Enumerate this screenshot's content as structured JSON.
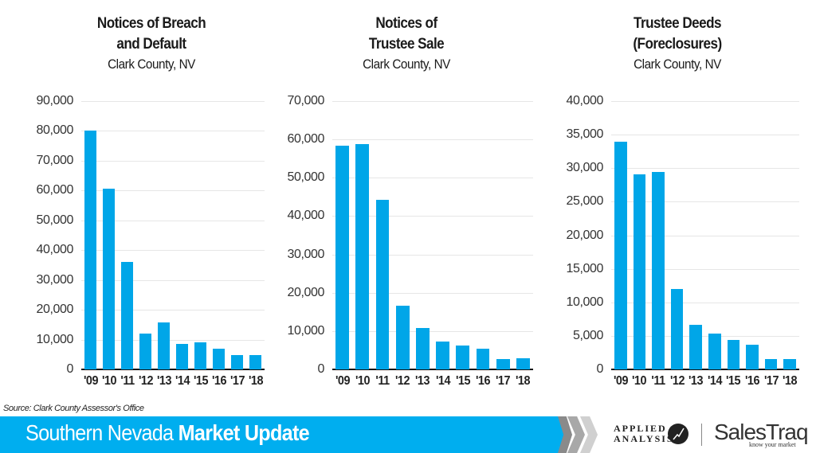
{
  "charts": [
    {
      "title_line1": "Notices of Breach",
      "title_line2": "and Default",
      "subtitle": "Clark County, NV",
      "yticks": [
        "0",
        "10,000",
        "20,000",
        "30,000",
        "40,000",
        "50,000",
        "60,000",
        "70,000",
        "80,000",
        "90,000"
      ],
      "ymax": 90000
    },
    {
      "title_line1": "Notices of",
      "title_line2": "Trustee Sale",
      "subtitle": "Clark County, NV",
      "yticks": [
        "0",
        "10,000",
        "20,000",
        "30,000",
        "40,000",
        "50,000",
        "60,000",
        "70,000"
      ],
      "ymax": 70000
    },
    {
      "title_line1": "Trustee Deeds",
      "title_line2": "(Foreclosures)",
      "subtitle": "Clark County, NV",
      "yticks": [
        "0",
        "5,000",
        "10,000",
        "15,000",
        "20,000",
        "25,000",
        "30,000",
        "35,000",
        "40,000"
      ],
      "ymax": 40000
    }
  ],
  "chart_data": [
    {
      "type": "bar",
      "title": "Notices of Breach and Default",
      "subtitle": "Clark County, NV",
      "categories": [
        "'09",
        "'10",
        "'11",
        "'12",
        "'13",
        "'14",
        "'15",
        "'16",
        "'17",
        "'18"
      ],
      "values": [
        80000,
        60700,
        36100,
        12000,
        15800,
        8600,
        9100,
        6900,
        4800,
        4800
      ],
      "xlabel": "",
      "ylabel": "",
      "ylim": [
        0,
        90000
      ],
      "yticks": [
        0,
        10000,
        20000,
        30000,
        40000,
        50000,
        60000,
        70000,
        80000,
        90000
      ],
      "grid": true,
      "color": "#00a6e8"
    },
    {
      "type": "bar",
      "title": "Notices of Trustee Sale",
      "subtitle": "Clark County, NV",
      "categories": [
        "'09",
        "'10",
        "'11",
        "'12",
        "'13",
        "'14",
        "'15",
        "'16",
        "'17",
        "'18"
      ],
      "values": [
        58400,
        58800,
        44300,
        16600,
        10800,
        7300,
        6200,
        5400,
        2700,
        2900
      ],
      "xlabel": "",
      "ylabel": "",
      "ylim": [
        0,
        70000
      ],
      "yticks": [
        0,
        10000,
        20000,
        30000,
        40000,
        50000,
        60000,
        70000
      ],
      "grid": true,
      "color": "#00a6e8"
    },
    {
      "type": "bar",
      "title": "Trustee Deeds (Foreclosures)",
      "subtitle": "Clark County, NV",
      "categories": [
        "'09",
        "'10",
        "'11",
        "'12",
        "'13",
        "'14",
        "'15",
        "'16",
        "'17",
        "'18"
      ],
      "values": [
        34000,
        29100,
        29400,
        12000,
        6700,
        5300,
        4400,
        3700,
        1600,
        1600
      ],
      "xlabel": "",
      "ylabel": "",
      "ylim": [
        0,
        40000
      ],
      "yticks": [
        0,
        5000,
        10000,
        15000,
        20000,
        25000,
        30000,
        35000,
        40000
      ],
      "grid": true,
      "color": "#00a6e8"
    }
  ],
  "footer": {
    "source": "Source: Clark County Assessor's Office",
    "banner_regular": "Southern Nevada ",
    "banner_bold": "Market Update",
    "banner_color": "#00aeef",
    "logo_applied_line1": "APPLIED",
    "logo_applied_line2": "ANALYSIS",
    "logo_salestraq": "SalesTraq",
    "logo_salestraq_tagline": "know your market"
  }
}
